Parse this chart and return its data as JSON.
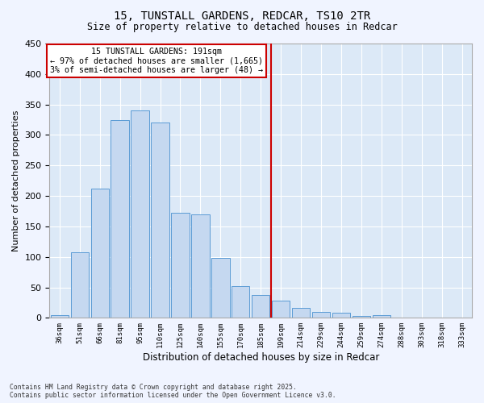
{
  "title": "15, TUNSTALL GARDENS, REDCAR, TS10 2TR",
  "subtitle": "Size of property relative to detached houses in Redcar",
  "xlabel": "Distribution of detached houses by size in Redcar",
  "ylabel": "Number of detached properties",
  "categories": [
    "36sqm",
    "51sqm",
    "66sqm",
    "81sqm",
    "95sqm",
    "110sqm",
    "125sqm",
    "140sqm",
    "155sqm",
    "170sqm",
    "185sqm",
    "199sqm",
    "214sqm",
    "229sqm",
    "244sqm",
    "259sqm",
    "274sqm",
    "288sqm",
    "303sqm",
    "318sqm",
    "333sqm"
  ],
  "values": [
    5,
    107,
    212,
    325,
    340,
    320,
    172,
    170,
    98,
    52,
    37,
    28,
    16,
    10,
    8,
    3,
    5,
    1,
    0,
    0,
    0
  ],
  "bar_color": "#c5d8f0",
  "bar_edge_color": "#5b9bd5",
  "background_color": "#dce9f7",
  "grid_color": "#ffffff",
  "vline_color": "#cc0000",
  "annotation_title": "15 TUNSTALL GARDENS: 191sqm",
  "annotation_line2": "← 97% of detached houses are smaller (1,665)",
  "annotation_line3": "3% of semi-detached houses are larger (48) →",
  "annotation_box_color": "#ffffff",
  "annotation_border_color": "#cc0000",
  "footnote1": "Contains HM Land Registry data © Crown copyright and database right 2025.",
  "footnote2": "Contains public sector information licensed under the Open Government Licence v3.0.",
  "ylim": [
    0,
    450
  ],
  "yticks": [
    0,
    50,
    100,
    150,
    200,
    250,
    300,
    350,
    400,
    450
  ],
  "fig_bg": "#f0f4ff"
}
